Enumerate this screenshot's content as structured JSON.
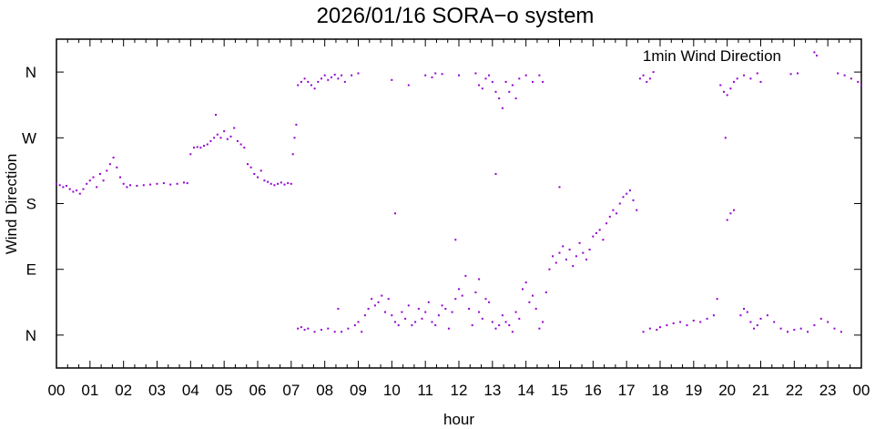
{
  "chart_data": {
    "type": "scatter",
    "title": "2026/01/16 SORA−o system",
    "xlabel": "hour",
    "ylabel": "Wind Direction",
    "xlim": [
      0,
      24
    ],
    "ylim": [
      -0.5,
      4.5
    ],
    "x_tick_labels": [
      "00",
      "01",
      "02",
      "03",
      "04",
      "05",
      "06",
      "07",
      "08",
      "09",
      "10",
      "11",
      "12",
      "13",
      "14",
      "15",
      "16",
      "17",
      "18",
      "19",
      "20",
      "21",
      "22",
      "23",
      "00"
    ],
    "y_tick_labels": [
      "N",
      "E",
      "S",
      "W",
      "N"
    ],
    "y_tick_values": [
      0,
      1,
      2,
      3,
      4
    ],
    "legend_position": "top-right",
    "series": [
      {
        "name": "1min Wind Direction",
        "color": "#9400d3",
        "note": "y in quarter-circle units: 0=N, 1=E, 2=S, 3=W, 4=N",
        "points": [
          [
            0.0,
            2.3
          ],
          [
            0.1,
            2.28
          ],
          [
            0.2,
            2.25
          ],
          [
            0.3,
            2.27
          ],
          [
            0.4,
            2.22
          ],
          [
            0.5,
            2.18
          ],
          [
            0.6,
            2.2
          ],
          [
            0.7,
            2.15
          ],
          [
            0.8,
            2.22
          ],
          [
            0.9,
            2.3
          ],
          [
            1.0,
            2.35
          ],
          [
            1.1,
            2.4
          ],
          [
            1.2,
            2.25
          ],
          [
            1.3,
            2.45
          ],
          [
            1.4,
            2.35
          ],
          [
            1.5,
            2.5
          ],
          [
            1.6,
            2.6
          ],
          [
            1.7,
            2.7
          ],
          [
            1.8,
            2.55
          ],
          [
            1.9,
            2.4
          ],
          [
            2.0,
            2.3
          ],
          [
            2.1,
            2.25
          ],
          [
            2.2,
            2.28
          ],
          [
            2.4,
            2.27
          ],
          [
            2.6,
            2.28
          ],
          [
            2.8,
            2.29
          ],
          [
            3.0,
            2.3
          ],
          [
            3.2,
            2.31
          ],
          [
            3.4,
            2.29
          ],
          [
            3.6,
            2.3
          ],
          [
            3.8,
            2.32
          ],
          [
            3.9,
            2.31
          ],
          [
            4.0,
            2.75
          ],
          [
            4.1,
            2.85
          ],
          [
            4.2,
            2.86
          ],
          [
            4.3,
            2.85
          ],
          [
            4.4,
            2.88
          ],
          [
            4.5,
            2.9
          ],
          [
            4.6,
            2.95
          ],
          [
            4.7,
            3.0
          ],
          [
            4.75,
            3.35
          ],
          [
            4.8,
            3.05
          ],
          [
            4.9,
            3.0
          ],
          [
            5.0,
            3.1
          ],
          [
            5.1,
            2.98
          ],
          [
            5.2,
            3.02
          ],
          [
            5.3,
            3.15
          ],
          [
            5.4,
            2.95
          ],
          [
            5.5,
            2.9
          ],
          [
            5.6,
            2.85
          ],
          [
            5.7,
            2.6
          ],
          [
            5.8,
            2.55
          ],
          [
            5.9,
            2.45
          ],
          [
            6.0,
            2.4
          ],
          [
            6.1,
            2.5
          ],
          [
            6.2,
            2.35
          ],
          [
            6.3,
            2.33
          ],
          [
            6.4,
            2.3
          ],
          [
            6.5,
            2.28
          ],
          [
            6.6,
            2.3
          ],
          [
            6.7,
            2.32
          ],
          [
            6.8,
            2.29
          ],
          [
            6.9,
            2.31
          ],
          [
            7.0,
            2.3
          ],
          [
            7.05,
            2.75
          ],
          [
            7.1,
            3.0
          ],
          [
            7.15,
            3.2
          ],
          [
            7.2,
            3.8
          ],
          [
            7.3,
            3.85
          ],
          [
            7.4,
            3.9
          ],
          [
            7.5,
            3.85
          ],
          [
            7.6,
            3.8
          ],
          [
            7.7,
            3.75
          ],
          [
            7.8,
            3.85
          ],
          [
            7.9,
            3.9
          ],
          [
            8.0,
            3.95
          ],
          [
            8.1,
            3.88
          ],
          [
            8.2,
            3.92
          ],
          [
            8.3,
            3.96
          ],
          [
            8.4,
            3.9
          ],
          [
            8.5,
            3.95
          ],
          [
            8.6,
            3.85
          ],
          [
            8.8,
            3.95
          ],
          [
            9.0,
            3.98
          ],
          [
            10.0,
            3.88
          ],
          [
            10.5,
            3.8
          ],
          [
            11.0,
            3.95
          ],
          [
            11.2,
            3.92
          ],
          [
            11.3,
            3.98
          ],
          [
            11.5,
            3.97
          ],
          [
            12.0,
            3.95
          ],
          [
            12.5,
            3.98
          ],
          [
            12.6,
            3.8
          ],
          [
            12.7,
            3.75
          ],
          [
            12.8,
            3.9
          ],
          [
            12.9,
            3.95
          ],
          [
            13.0,
            3.85
          ],
          [
            13.1,
            3.7
          ],
          [
            13.2,
            3.6
          ],
          [
            13.3,
            3.45
          ],
          [
            13.4,
            3.85
          ],
          [
            13.5,
            3.7
          ],
          [
            13.6,
            3.8
          ],
          [
            13.7,
            3.6
          ],
          [
            13.8,
            3.9
          ],
          [
            14.0,
            3.95
          ],
          [
            14.2,
            3.85
          ],
          [
            14.4,
            3.95
          ],
          [
            14.5,
            3.85
          ],
          [
            7.2,
            0.1
          ],
          [
            7.3,
            0.12
          ],
          [
            7.4,
            0.08
          ],
          [
            7.5,
            0.1
          ],
          [
            7.7,
            0.05
          ],
          [
            7.9,
            0.08
          ],
          [
            8.1,
            0.1
          ],
          [
            8.3,
            0.05
          ],
          [
            8.4,
            0.4
          ],
          [
            8.5,
            0.05
          ],
          [
            8.7,
            0.1
          ],
          [
            8.9,
            0.15
          ],
          [
            9.0,
            0.2
          ],
          [
            9.1,
            0.05
          ],
          [
            9.2,
            0.3
          ],
          [
            9.3,
            0.4
          ],
          [
            9.4,
            0.55
          ],
          [
            9.5,
            0.45
          ],
          [
            9.6,
            0.5
          ],
          [
            9.7,
            0.6
          ],
          [
            9.8,
            0.35
          ],
          [
            9.9,
            0.55
          ],
          [
            10.0,
            0.3
          ],
          [
            10.1,
            0.2
          ],
          [
            10.2,
            0.15
          ],
          [
            10.3,
            0.35
          ],
          [
            10.4,
            0.25
          ],
          [
            10.5,
            0.45
          ],
          [
            10.6,
            0.15
          ],
          [
            10.7,
            0.2
          ],
          [
            10.8,
            0.4
          ],
          [
            10.9,
            0.25
          ],
          [
            11.0,
            0.35
          ],
          [
            11.1,
            0.5
          ],
          [
            11.2,
            0.2
          ],
          [
            11.3,
            0.15
          ],
          [
            11.4,
            0.3
          ],
          [
            11.5,
            0.45
          ],
          [
            11.6,
            0.4
          ],
          [
            11.7,
            0.1
          ],
          [
            11.8,
            0.35
          ],
          [
            11.9,
            0.55
          ],
          [
            12.0,
            0.7
          ],
          [
            12.1,
            0.6
          ],
          [
            12.2,
            0.9
          ],
          [
            12.3,
            0.4
          ],
          [
            12.4,
            0.15
          ],
          [
            12.5,
            0.65
          ],
          [
            12.6,
            0.35
          ],
          [
            12.7,
            0.25
          ],
          [
            12.8,
            0.55
          ],
          [
            12.9,
            0.5
          ],
          [
            13.0,
            0.2
          ],
          [
            13.1,
            0.1
          ],
          [
            13.2,
            0.15
          ],
          [
            13.3,
            0.3
          ],
          [
            13.4,
            0.2
          ],
          [
            13.5,
            0.15
          ],
          [
            13.6,
            0.05
          ],
          [
            13.7,
            0.35
          ],
          [
            13.8,
            0.25
          ],
          [
            13.9,
            0.7
          ],
          [
            14.0,
            0.8
          ],
          [
            14.1,
            0.5
          ],
          [
            14.2,
            0.6
          ],
          [
            14.3,
            0.4
          ],
          [
            14.4,
            0.1
          ],
          [
            14.5,
            0.2
          ],
          [
            14.6,
            0.65
          ],
          [
            14.7,
            1.0
          ],
          [
            14.8,
            1.2
          ],
          [
            14.9,
            1.1
          ],
          [
            15.0,
            1.25
          ],
          [
            15.1,
            1.35
          ],
          [
            15.2,
            1.15
          ],
          [
            15.3,
            1.3
          ],
          [
            15.4,
            1.05
          ],
          [
            15.5,
            1.2
          ],
          [
            15.6,
            1.4
          ],
          [
            15.7,
            1.25
          ],
          [
            15.8,
            1.15
          ],
          [
            15.9,
            1.3
          ],
          [
            16.0,
            1.5
          ],
          [
            16.1,
            1.55
          ],
          [
            16.2,
            1.6
          ],
          [
            16.3,
            1.45
          ],
          [
            16.4,
            1.7
          ],
          [
            16.5,
            1.8
          ],
          [
            16.6,
            1.9
          ],
          [
            16.7,
            1.85
          ],
          [
            16.8,
            2.0
          ],
          [
            16.9,
            2.1
          ],
          [
            17.0,
            2.15
          ],
          [
            17.1,
            2.2
          ],
          [
            17.2,
            2.05
          ],
          [
            17.3,
            1.9
          ],
          [
            17.4,
            3.9
          ],
          [
            17.5,
            3.95
          ],
          [
            17.6,
            3.85
          ],
          [
            17.7,
            3.9
          ],
          [
            17.8,
            4.0
          ],
          [
            17.5,
            0.05
          ],
          [
            17.7,
            0.1
          ],
          [
            17.9,
            0.08
          ],
          [
            18.0,
            0.12
          ],
          [
            18.2,
            0.15
          ],
          [
            18.4,
            0.18
          ],
          [
            18.6,
            0.2
          ],
          [
            18.8,
            0.15
          ],
          [
            19.0,
            0.22
          ],
          [
            19.2,
            0.2
          ],
          [
            19.4,
            0.25
          ],
          [
            19.6,
            0.3
          ],
          [
            19.7,
            0.55
          ],
          [
            19.8,
            3.8
          ],
          [
            19.9,
            3.7
          ],
          [
            20.0,
            3.65
          ],
          [
            20.1,
            3.75
          ],
          [
            20.2,
            3.85
          ],
          [
            20.3,
            3.9
          ],
          [
            19.95,
            3.0
          ],
          [
            20.0,
            1.75
          ],
          [
            20.1,
            1.85
          ],
          [
            20.2,
            1.9
          ],
          [
            20.4,
            0.3
          ],
          [
            20.5,
            0.4
          ],
          [
            20.6,
            0.35
          ],
          [
            20.7,
            0.2
          ],
          [
            20.8,
            0.1
          ],
          [
            20.9,
            0.15
          ],
          [
            21.0,
            0.25
          ],
          [
            21.2,
            0.3
          ],
          [
            21.4,
            0.2
          ],
          [
            21.6,
            0.1
          ],
          [
            21.8,
            0.05
          ],
          [
            22.0,
            0.08
          ],
          [
            22.2,
            0.1
          ],
          [
            22.4,
            0.05
          ],
          [
            22.6,
            0.15
          ],
          [
            22.8,
            0.25
          ],
          [
            23.0,
            0.2
          ],
          [
            23.2,
            0.1
          ],
          [
            23.4,
            0.05
          ],
          [
            20.5,
            3.95
          ],
          [
            20.7,
            3.9
          ],
          [
            20.9,
            3.98
          ],
          [
            21.0,
            3.85
          ],
          [
            21.9,
            3.97
          ],
          [
            22.1,
            3.98
          ],
          [
            22.6,
            4.3
          ],
          [
            23.3,
            3.98
          ],
          [
            23.5,
            3.95
          ],
          [
            23.7,
            3.9
          ],
          [
            23.9,
            3.85
          ],
          [
            24.0,
            3.8
          ],
          [
            15.0,
            2.25
          ],
          [
            13.1,
            2.45
          ],
          [
            10.1,
            1.85
          ],
          [
            11.9,
            1.45
          ],
          [
            12.6,
            0.85
          ]
        ]
      }
    ]
  }
}
